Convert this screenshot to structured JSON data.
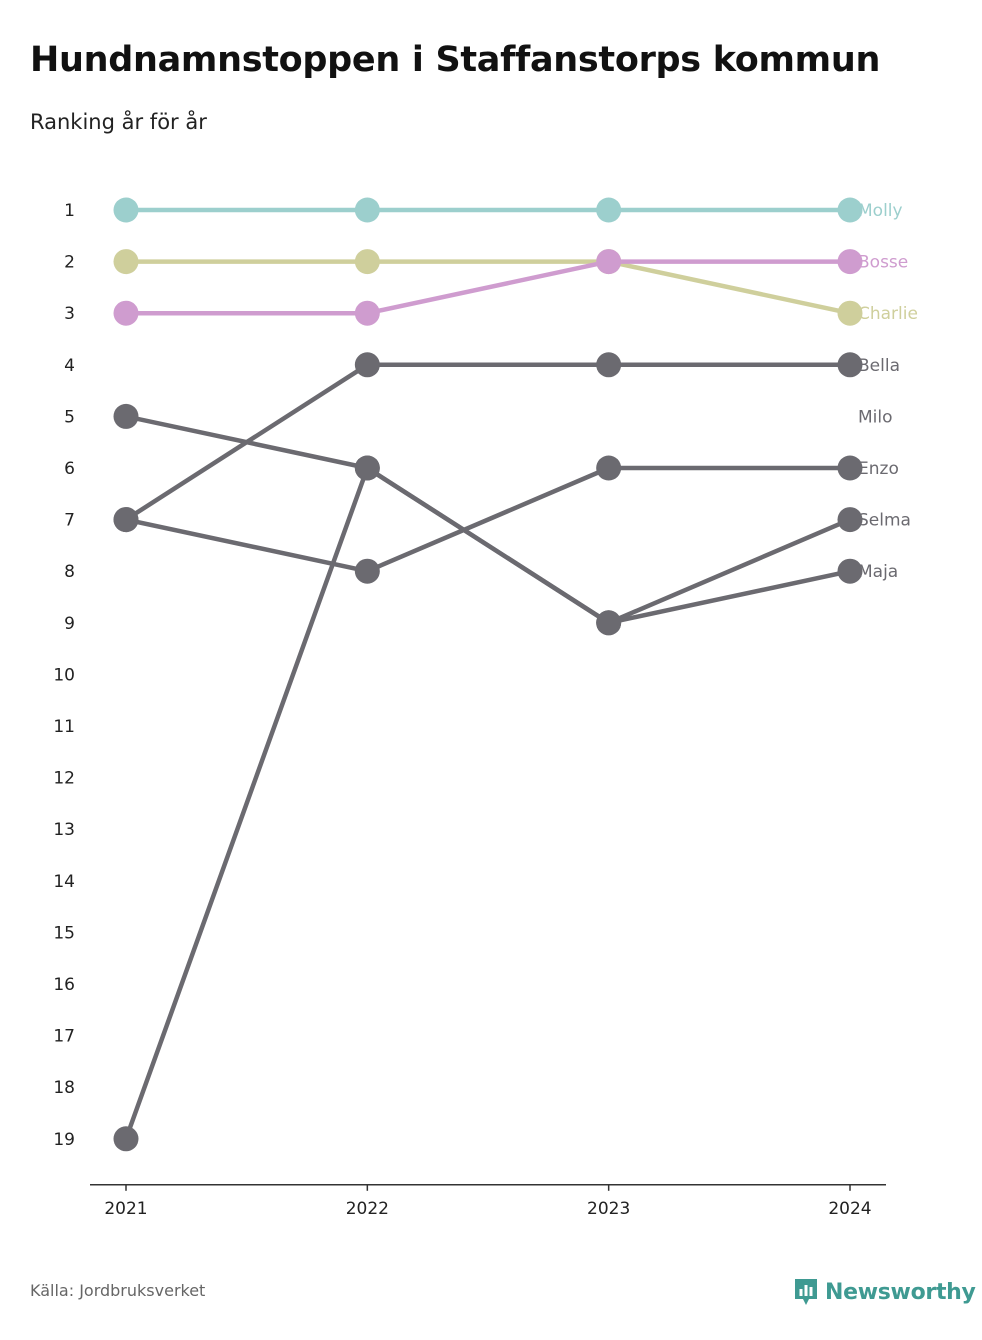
{
  "title": "Hundnamnstoppen i Staffanstorps kommun",
  "subtitle": "Ranking år för år",
  "source": "Källa: Jordbruksverket",
  "brand": {
    "name": "Newsworthy",
    "icon": "newsworthy-logo-icon",
    "color": "#3f9a92"
  },
  "chart_data": {
    "type": "line",
    "x": [
      "2021",
      "2022",
      "2023",
      "2024"
    ],
    "y_ticks": [
      1,
      2,
      3,
      4,
      5,
      6,
      7,
      8,
      9,
      10,
      11,
      12,
      13,
      14,
      15,
      16,
      17,
      18,
      19
    ],
    "ylim": [
      1,
      19
    ],
    "y_inverted": true,
    "grid": false,
    "legend": "direct labels at right end",
    "series": [
      {
        "name": "Molly",
        "color": "#9ccfcd",
        "values": [
          1,
          1,
          1,
          1
        ]
      },
      {
        "name": "Charlie",
        "color": "#cfcf9c",
        "values": [
          2,
          2,
          2,
          3
        ]
      },
      {
        "name": "Bosse",
        "color": "#cf9ccf",
        "values": [
          3,
          3,
          2,
          2
        ]
      },
      {
        "name": "Bella",
        "color": "#6b6a70",
        "values": [
          7,
          4,
          4,
          4
        ]
      },
      {
        "name": "Milo",
        "color": "#6b6a70",
        "values": [
          null,
          null,
          null,
          null
        ]
      },
      {
        "name": "Enzo",
        "color": "#6b6a70",
        "values": [
          7,
          8,
          6,
          6
        ]
      },
      {
        "name": "Selma",
        "color": "#6b6a70",
        "values": [
          5,
          6,
          9,
          7
        ]
      },
      {
        "name": "Maja",
        "color": "#6b6a70",
        "values": [
          19,
          6,
          9,
          8
        ]
      }
    ]
  }
}
